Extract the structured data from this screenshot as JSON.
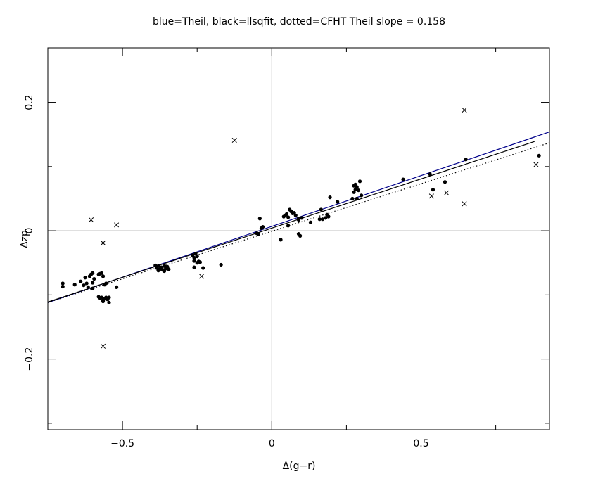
{
  "chart_data": {
    "type": "scatter",
    "title": "blue=Theil, black=llsqfit, dotted=CFHT    Theil slope =  0.158",
    "xlabel": "Δ(g−r)",
    "ylabel": "Δzp",
    "xlim": [
      -0.75,
      0.93
    ],
    "ylim": [
      -0.31,
      0.285
    ],
    "xticks": [
      -0.5,
      0,
      0.5
    ],
    "xtick_labels": [
      "−0.5",
      "0",
      "0.5"
    ],
    "yticks": [
      -0.2,
      0,
      0.2
    ],
    "ytick_labels": [
      "−0.2",
      "0",
      "0.2"
    ],
    "grid": false,
    "legend": "none",
    "reference_lines": {
      "x": 0,
      "y": 0,
      "color": "#aaaaaa"
    },
    "fit_lines": [
      {
        "method": "Theil",
        "color": "#00008b",
        "style": "solid",
        "x": [
          -0.75,
          0.93
        ],
        "y": [
          -0.112,
          0.154
        ]
      },
      {
        "method": "llsqfit",
        "color": "#000000",
        "style": "solid",
        "x": [
          -0.75,
          0.88
        ],
        "y": [
          -0.111,
          0.139
        ]
      },
      {
        "method": "CFHT",
        "color": "#000000",
        "style": "dotted",
        "x": [
          -0.75,
          0.93
        ],
        "y": [
          -0.112,
          0.137
        ]
      }
    ],
    "series": [
      {
        "marker": "dot",
        "points": [
          [
            -0.7,
            -0.087
          ],
          [
            -0.7,
            -0.082
          ],
          [
            -0.66,
            -0.084
          ],
          [
            -0.64,
            -0.079
          ],
          [
            -0.63,
            -0.085
          ],
          [
            -0.625,
            -0.073
          ],
          [
            -0.62,
            -0.082
          ],
          [
            -0.615,
            -0.088
          ],
          [
            -0.61,
            -0.071
          ],
          [
            -0.605,
            -0.068
          ],
          [
            -0.6,
            -0.066
          ],
          [
            -0.6,
            -0.081
          ],
          [
            -0.6,
            -0.09
          ],
          [
            -0.595,
            -0.075
          ],
          [
            -0.58,
            -0.068
          ],
          [
            -0.575,
            -0.067
          ],
          [
            -0.57,
            -0.066
          ],
          [
            -0.565,
            -0.071
          ],
          [
            -0.56,
            -0.084
          ],
          [
            -0.555,
            -0.082
          ],
          [
            -0.58,
            -0.103
          ],
          [
            -0.575,
            -0.105
          ],
          [
            -0.57,
            -0.104
          ],
          [
            -0.565,
            -0.108
          ],
          [
            -0.56,
            -0.106
          ],
          [
            -0.555,
            -0.104
          ],
          [
            -0.55,
            -0.107
          ],
          [
            -0.545,
            -0.104
          ],
          [
            -0.565,
            -0.11
          ],
          [
            -0.545,
            -0.112
          ],
          [
            -0.52,
            -0.088
          ],
          [
            -0.39,
            -0.054
          ],
          [
            -0.385,
            -0.058
          ],
          [
            -0.38,
            -0.055
          ],
          [
            -0.375,
            -0.06
          ],
          [
            -0.37,
            -0.057
          ],
          [
            -0.365,
            -0.061
          ],
          [
            -0.36,
            -0.055
          ],
          [
            -0.355,
            -0.059
          ],
          [
            -0.35,
            -0.056
          ],
          [
            -0.345,
            -0.06
          ],
          [
            -0.38,
            -0.062
          ],
          [
            -0.36,
            -0.063
          ],
          [
            -0.265,
            -0.038
          ],
          [
            -0.26,
            -0.042
          ],
          [
            -0.255,
            -0.036
          ],
          [
            -0.25,
            -0.04
          ],
          [
            -0.245,
            -0.048
          ],
          [
            -0.26,
            -0.047
          ],
          [
            -0.25,
            -0.05
          ],
          [
            -0.24,
            -0.049
          ],
          [
            -0.26,
            -0.057
          ],
          [
            -0.23,
            -0.058
          ],
          [
            -0.17,
            -0.053
          ],
          [
            -0.05,
            -0.004
          ],
          [
            -0.045,
            -0.005
          ],
          [
            -0.04,
            0.019
          ],
          [
            -0.035,
            0.004
          ],
          [
            -0.03,
            0.006
          ],
          [
            0.03,
            -0.014
          ],
          [
            0.04,
            0.022
          ],
          [
            0.045,
            0.024
          ],
          [
            0.05,
            0.026
          ],
          [
            0.055,
            0.021
          ],
          [
            0.055,
            0.008
          ],
          [
            0.06,
            0.033
          ],
          [
            0.065,
            0.03
          ],
          [
            0.07,
            0.027
          ],
          [
            0.075,
            0.028
          ],
          [
            0.08,
            0.024
          ],
          [
            0.09,
            0.017
          ],
          [
            0.09,
            0.019
          ],
          [
            0.1,
            0.02
          ],
          [
            0.09,
            -0.005
          ],
          [
            0.095,
            -0.008
          ],
          [
            0.13,
            0.013
          ],
          [
            0.16,
            0.018
          ],
          [
            0.165,
            0.033
          ],
          [
            0.17,
            0.018
          ],
          [
            0.18,
            0.02
          ],
          [
            0.185,
            0.025
          ],
          [
            0.19,
            0.022
          ],
          [
            0.195,
            0.052
          ],
          [
            0.22,
            0.045
          ],
          [
            0.27,
            0.05
          ],
          [
            0.275,
            0.06
          ],
          [
            0.275,
            0.07
          ],
          [
            0.28,
            0.072
          ],
          [
            0.28,
            0.064
          ],
          [
            0.285,
            0.068
          ],
          [
            0.29,
            0.063
          ],
          [
            0.295,
            0.077
          ],
          [
            0.3,
            0.055
          ],
          [
            0.285,
            0.05
          ],
          [
            0.44,
            0.08
          ],
          [
            0.53,
            0.088
          ],
          [
            0.54,
            0.064
          ],
          [
            0.58,
            0.076
          ],
          [
            0.65,
            0.111
          ],
          [
            0.895,
            0.117
          ]
        ]
      },
      {
        "marker": "cross",
        "points": [
          [
            -0.605,
            0.017
          ],
          [
            -0.52,
            0.009
          ],
          [
            -0.565,
            -0.019
          ],
          [
            -0.565,
            -0.18
          ],
          [
            -0.235,
            -0.071
          ],
          [
            -0.125,
            0.141
          ],
          [
            0.535,
            0.054
          ],
          [
            0.585,
            0.059
          ],
          [
            0.645,
            0.042
          ],
          [
            0.645,
            0.188
          ],
          [
            0.885,
            0.103
          ]
        ]
      }
    ]
  }
}
